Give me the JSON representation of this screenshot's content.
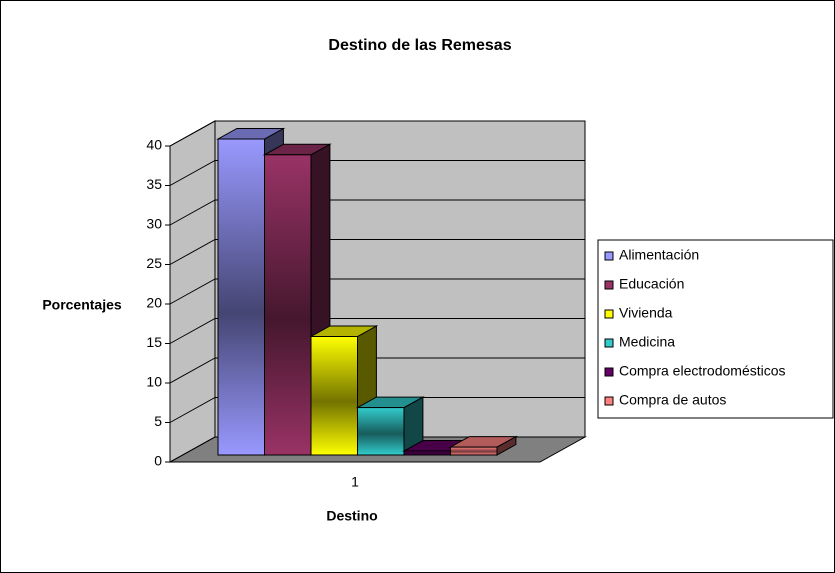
{
  "chart_data": {
    "type": "bar3d",
    "title": "Destino de las Remesas",
    "x_label": "Destino",
    "y_label": "Porcentajes",
    "categories": [
      "1"
    ],
    "series": [
      {
        "name": "Alimentación",
        "color": "#9999ff",
        "values": [
          40
        ]
      },
      {
        "name": "Educación",
        "color": "#993366",
        "values": [
          38
        ]
      },
      {
        "name": "Vivienda",
        "color": "#ffff00",
        "values": [
          15
        ]
      },
      {
        "name": "Medicina",
        "color": "#33cccc",
        "values": [
          6
        ]
      },
      {
        "name": "Compra electrodomésticos",
        "color": "#660066",
        "values": [
          0.5
        ]
      },
      {
        "name": "Compra de autos",
        "color": "#ff8080",
        "values": [
          1
        ]
      }
    ],
    "ylim": [
      0,
      40
    ],
    "yticks": [
      0,
      5,
      10,
      15,
      20,
      25,
      30,
      35,
      40
    ],
    "grid": true,
    "legend": "right"
  }
}
